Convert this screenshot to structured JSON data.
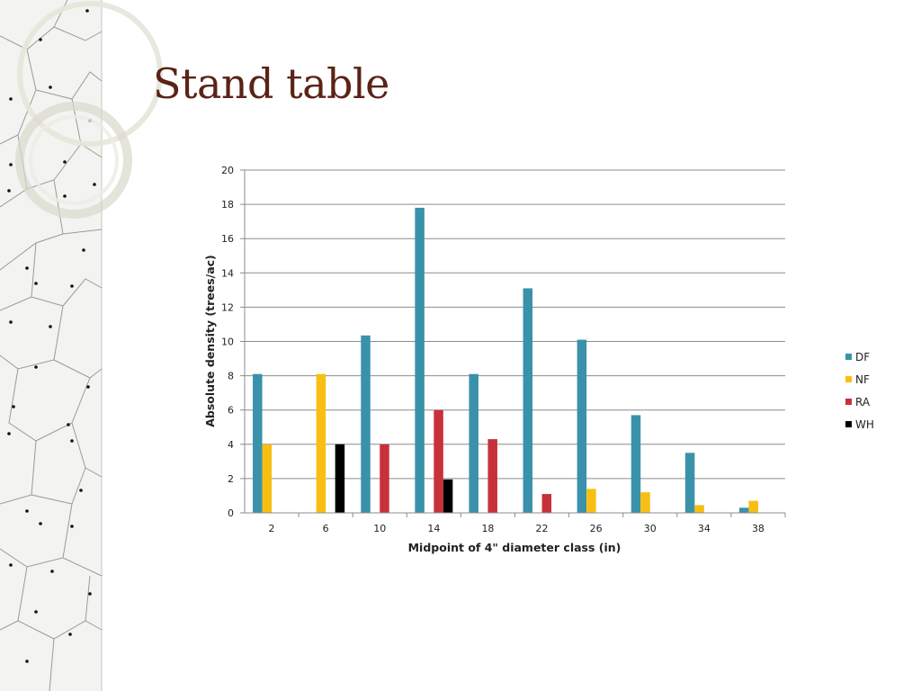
{
  "slide": {
    "title": "Stand table"
  },
  "colors": {
    "DF": "#3a92aa",
    "NF": "#f8be12",
    "RA": "#c8313a",
    "WH": "#000000",
    "title": "#5a2316"
  },
  "chart_data": {
    "type": "bar",
    "title": "",
    "xlabel": "Midpoint of 4\" diameter class (in)",
    "ylabel": "Absolute density (trees/ac)",
    "ylim": [
      0,
      20
    ],
    "yticks": [
      "0",
      "2",
      "4",
      "6",
      "8",
      "10",
      "12",
      "14",
      "16",
      "18",
      "20"
    ],
    "grid": true,
    "legend_position": "right",
    "categories": [
      "2",
      "6",
      "10",
      "14",
      "18",
      "22",
      "26",
      "30",
      "34",
      "38"
    ],
    "series": [
      {
        "name": "DF",
        "values": [
          8.1,
          0,
          10.35,
          17.8,
          8.1,
          13.1,
          10.1,
          5.7,
          3.5,
          0.3
        ]
      },
      {
        "name": "NF",
        "values": [
          4.0,
          8.1,
          0,
          0,
          0,
          0,
          1.4,
          1.2,
          0.45,
          0.7
        ]
      },
      {
        "name": "RA",
        "values": [
          0,
          0,
          4.0,
          6.0,
          4.3,
          1.1,
          0,
          0,
          0,
          0
        ]
      },
      {
        "name": "WH",
        "values": [
          0,
          4.0,
          0,
          1.95,
          0,
          0,
          0,
          0,
          0,
          0
        ]
      }
    ]
  }
}
